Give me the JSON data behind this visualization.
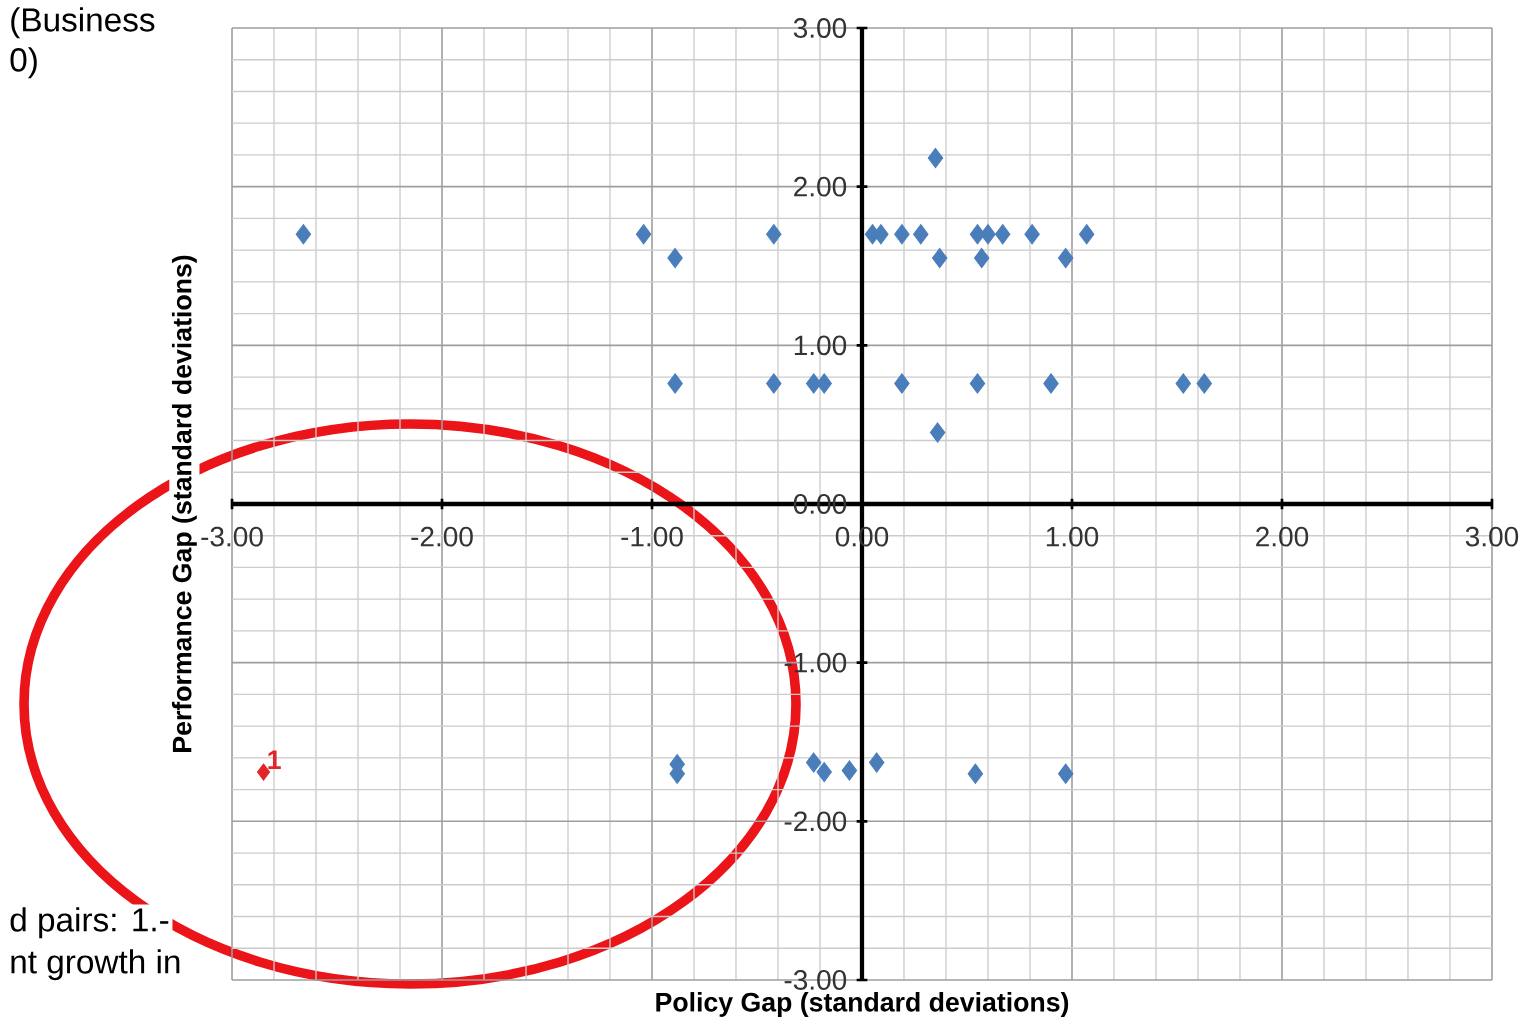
{
  "chart_data": {
    "type": "scatter",
    "xlabel": "Policy Gap (standard deviations)",
    "ylabel": "Performance Gap (standard deviations)",
    "annotations": [
      "(Business",
      "0)",
      "d pairs: 1.-",
      "nt growth in",
      {
        "text": "1",
        "x": -2.85,
        "y": -1.69
      }
    ],
    "series": [
      {
        "color": "#4a7ebb",
        "x": [
          -2.66,
          -1.04,
          -0.89,
          -0.42,
          -0.89,
          -0.42,
          -0.23,
          -0.18,
          0.05,
          0.09,
          0.19,
          0.28,
          0.35,
          0.37,
          0.55,
          0.6,
          0.67,
          0.57,
          0.81,
          0.97,
          1.07,
          0.19,
          0.55,
          0.9,
          1.53,
          1.63,
          0.36,
          -0.88,
          -0.88,
          -0.23,
          -0.18,
          -0.06,
          0.07,
          0.54,
          0.97
        ],
        "values": [
          1.7,
          1.7,
          1.55,
          1.7,
          0.76,
          0.76,
          0.76,
          0.76,
          1.7,
          1.7,
          1.7,
          1.7,
          2.18,
          1.55,
          1.7,
          1.7,
          1.7,
          1.55,
          1.7,
          1.55,
          1.7,
          0.76,
          0.76,
          0.76,
          0.76,
          0.76,
          0.45,
          -1.64,
          -1.7,
          -1.63,
          -1.69,
          -1.68,
          -1.63,
          -1.7,
          -1.7
        ]
      },
      {
        "color": "#e0262b",
        "x": [
          -2.85
        ],
        "values": [
          -1.69
        ]
      }
    ],
    "marker": "diamond",
    "grid": true,
    "xlim": [
      -3,
      3
    ],
    "ylim": [
      -3,
      3
    ],
    "xticks": [
      {
        "value": -3,
        "label": "-3.00"
      },
      {
        "value": -2,
        "label": "-2.00"
      },
      {
        "value": -1,
        "label": "-1.00"
      },
      {
        "value": 0,
        "label": "0.00"
      },
      {
        "value": 1,
        "label": "1.00"
      },
      {
        "value": 2,
        "label": "2.00"
      },
      {
        "value": 3,
        "label": "3.00"
      }
    ],
    "yticks": [
      {
        "value": -3,
        "label": "-3.00"
      },
      {
        "value": -2,
        "label": "-2.00"
      },
      {
        "value": -1,
        "label": "-1.00"
      },
      {
        "value": 0,
        "label": "0.00"
      },
      {
        "value": 1,
        "label": "1.00"
      },
      {
        "value": 2,
        "label": "2.00"
      },
      {
        "value": 3,
        "label": "3.00"
      }
    ]
  }
}
